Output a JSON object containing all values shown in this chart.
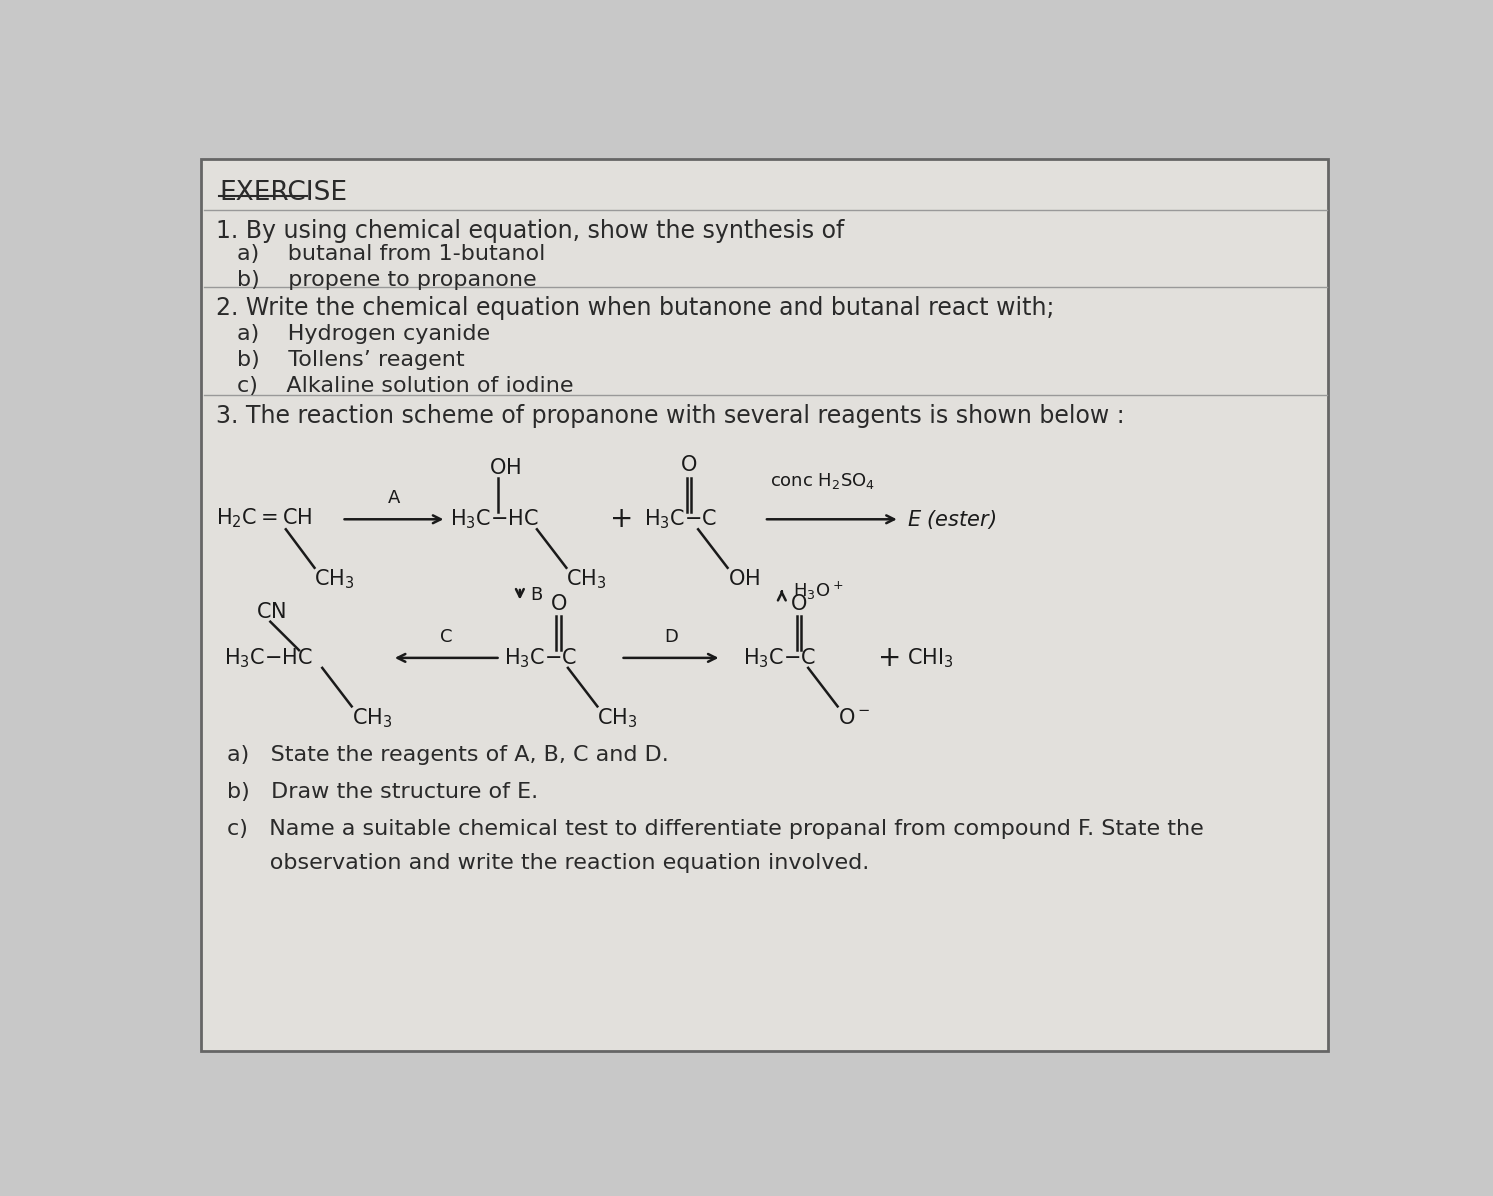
{
  "bg_color": "#c8c8c8",
  "paper_color": "#e2e0dc",
  "text_color": "#2a2a2a",
  "title": "EXERCISE",
  "q1_text": "1. By using chemical equation, show the synthesis of",
  "q1a": "a)    butanal from 1-butanol",
  "q1b": "b)    propene to propanone",
  "q2_text": "2. Write the chemical equation when butanone and butanal react with;",
  "q2a": "a)    Hydrogen cyanide",
  "q2b": "b)    Tollens’ reagent",
  "q2c": "c)    Alkaline solution of iodine",
  "q3_text": "3. The reaction scheme of propanone with several reagents is shown below :",
  "q3a": "a)   State the reagents of A, B, C and D.",
  "q3b": "b)   Draw the structure of E.",
  "q3c": "c)   Name a suitable chemical test to differentiate propanal from compound F. State the",
  "q3c2": "      observation and write the reaction equation involved.",
  "sep_color": "#999999",
  "arrow_color": "#1a1a1a"
}
